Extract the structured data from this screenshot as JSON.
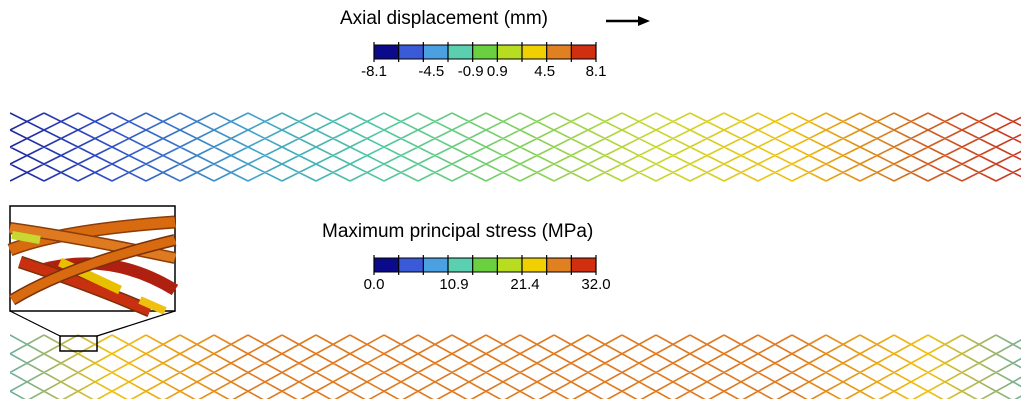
{
  "displacement_legend": {
    "title": "Axial displacement (mm)",
    "ticks": [
      "-8.1",
      "-4.5",
      "-0.9",
      "0.9",
      "4.5",
      "8.1"
    ],
    "colors": [
      "#0a0a8a",
      "#3a5ad8",
      "#4aa0e0",
      "#5ad0b0",
      "#6ad040",
      "#b8dc20",
      "#f0d000",
      "#e08020",
      "#d03010"
    ]
  },
  "stress_legend": {
    "title": "Maximum principal stress (MPa)",
    "ticks": [
      "0.0",
      "10.9",
      "21.4",
      "32.0"
    ],
    "colors": [
      "#0a0a8a",
      "#3a5ad8",
      "#4aa0e0",
      "#5ad0b0",
      "#6ad040",
      "#b8dc20",
      "#f0d000",
      "#e08020",
      "#d03010"
    ]
  },
  "stent_displacement": {
    "gradient": [
      "#1a1a90",
      "#3050c8",
      "#40a0c8",
      "#50c8a0",
      "#80d060",
      "#c8d830",
      "#f0c010",
      "#d06020",
      "#c82020"
    ]
  },
  "stent_stress": {
    "ends_color": "#40a8d0",
    "body_color": "#e07a20",
    "accent_color": "#f0c010"
  },
  "arrow_icon": "right-arrow"
}
